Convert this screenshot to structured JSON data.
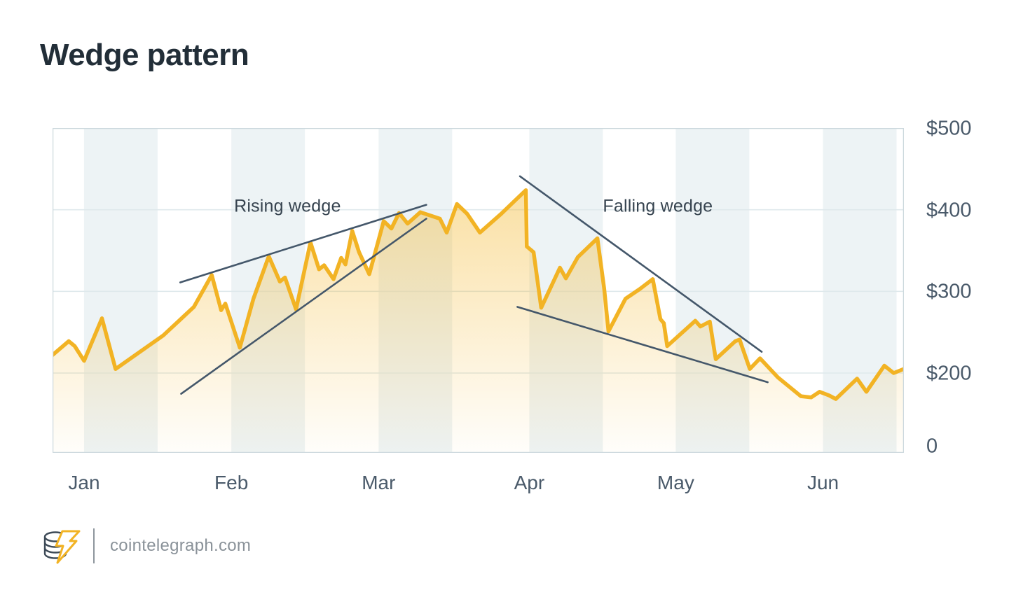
{
  "page": {
    "title": "Wedge pattern",
    "background_color": "#ffffff"
  },
  "footer": {
    "site_label": "cointelegraph.com",
    "logo": "cointelegraph-coin-lightning-mark"
  },
  "chart_data": {
    "type": "area",
    "title": "Wedge pattern",
    "grid": "horizontal-gridlines-on, alternating half-month vertical bands",
    "legend": "none",
    "x_axis": {
      "tick_labels": [
        "Jan",
        "Feb",
        "Mar",
        "Apr",
        "May",
        "Jun"
      ],
      "tick_positions": [
        0.037,
        0.21,
        0.383,
        0.56,
        0.732,
        0.905
      ],
      "band_width": 0.0864
    },
    "y_axis": {
      "side": "right",
      "tick_labels": [
        "$500",
        "$400",
        "$300",
        "$200",
        "0"
      ],
      "tick_values": [
        500,
        400,
        300,
        200,
        0
      ],
      "ylim": [
        0,
        500
      ],
      "note": "axis compressed below $200"
    },
    "series": [
      {
        "name": "price",
        "points": [
          [
            0.0,
            222
          ],
          [
            0.019,
            239
          ],
          [
            0.026,
            233
          ],
          [
            0.037,
            215
          ],
          [
            0.058,
            267
          ],
          [
            0.074,
            205
          ],
          [
            0.13,
            246
          ],
          [
            0.166,
            281
          ],
          [
            0.187,
            320
          ],
          [
            0.198,
            277
          ],
          [
            0.203,
            285
          ],
          [
            0.22,
            231
          ],
          [
            0.236,
            291
          ],
          [
            0.254,
            343
          ],
          [
            0.267,
            312
          ],
          [
            0.273,
            317
          ],
          [
            0.286,
            278
          ],
          [
            0.303,
            360
          ],
          [
            0.313,
            327
          ],
          [
            0.319,
            332
          ],
          [
            0.33,
            315
          ],
          [
            0.339,
            341
          ],
          [
            0.344,
            333
          ],
          [
            0.352,
            374
          ],
          [
            0.36,
            348
          ],
          [
            0.372,
            321
          ],
          [
            0.389,
            386
          ],
          [
            0.398,
            377
          ],
          [
            0.407,
            396
          ],
          [
            0.417,
            383
          ],
          [
            0.432,
            397
          ],
          [
            0.455,
            389
          ],
          [
            0.463,
            372
          ],
          [
            0.475,
            407
          ],
          [
            0.487,
            395
          ],
          [
            0.502,
            372
          ],
          [
            0.527,
            395
          ],
          [
            0.543,
            411
          ],
          [
            0.556,
            424
          ],
          [
            0.557,
            355
          ],
          [
            0.565,
            348
          ],
          [
            0.574,
            280
          ],
          [
            0.596,
            329
          ],
          [
            0.603,
            316
          ],
          [
            0.617,
            342
          ],
          [
            0.64,
            365
          ],
          [
            0.648,
            303
          ],
          [
            0.653,
            251
          ],
          [
            0.673,
            291
          ],
          [
            0.69,
            303
          ],
          [
            0.705,
            315
          ],
          [
            0.714,
            266
          ],
          [
            0.718,
            261
          ],
          [
            0.722,
            233
          ],
          [
            0.755,
            264
          ],
          [
            0.761,
            257
          ],
          [
            0.772,
            263
          ],
          [
            0.779,
            217
          ],
          [
            0.802,
            239
          ],
          [
            0.807,
            241
          ],
          [
            0.819,
            205
          ],
          [
            0.831,
            218
          ],
          [
            0.852,
            189
          ],
          [
            0.879,
            142
          ],
          [
            0.891,
            139
          ],
          [
            0.901,
            153
          ],
          [
            0.912,
            144
          ],
          [
            0.92,
            135
          ],
          [
            0.945,
            186
          ],
          [
            0.956,
            153
          ],
          [
            0.977,
            209
          ],
          [
            0.988,
            200
          ],
          [
            1.0,
            205
          ]
        ]
      }
    ],
    "trend_lines": [
      {
        "name": "rising-wedge-upper",
        "from": [
          0.15,
          311
        ],
        "to": [
          0.439,
          406
        ]
      },
      {
        "name": "rising-wedge-lower",
        "from": [
          0.151,
          148
        ],
        "to": [
          0.439,
          389
        ]
      },
      {
        "name": "falling-wedge-upper",
        "from": [
          0.549,
          441
        ],
        "to": [
          0.833,
          226
        ]
      },
      {
        "name": "falling-wedge-lower",
        "from": [
          0.546,
          281
        ],
        "to": [
          0.84,
          177
        ]
      }
    ],
    "annotations": [
      {
        "text": "Rising wedge",
        "x": 0.276,
        "value": 404
      },
      {
        "text": "Falling wedge",
        "x": 0.711,
        "value": 404
      }
    ],
    "style": {
      "line_color": "#f2b324",
      "fill_top": "rgba(243,181,38,0.42)",
      "fill_bottom": "rgba(243,181,38,0.02)",
      "trend_line_color": "#44576a",
      "band_color": "#edf3f5",
      "grid_color": "#dfe9ec",
      "border_color": "#cdd9de",
      "axis_text_color": "#4a5a6a",
      "annotation_text_color": "#36434f",
      "title_color": "#222e38",
      "logo_yellow": "#f2b324",
      "logo_slate": "#3d4a57"
    }
  }
}
